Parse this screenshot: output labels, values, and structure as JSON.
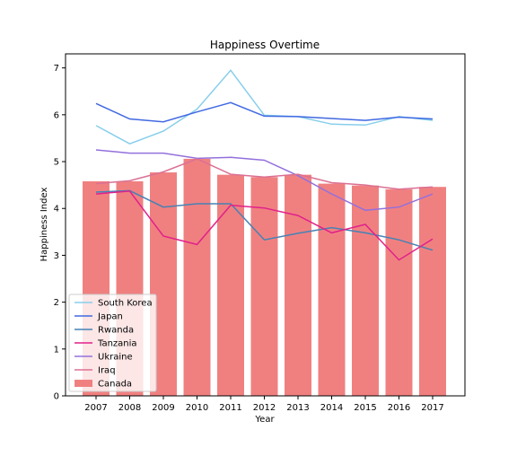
{
  "chart_data": {
    "type": "bar",
    "title": "Happiness Overtime",
    "xlabel": "Year",
    "ylabel": "Happiness Index",
    "categories": [
      "2007",
      "2008",
      "2009",
      "2010",
      "2011",
      "2012",
      "2013",
      "2014",
      "2015",
      "2016",
      "2017"
    ],
    "ylim": [
      0,
      7.3
    ],
    "yticks": [
      0,
      1,
      2,
      3,
      4,
      5,
      6,
      7
    ],
    "grid": false,
    "legend_position": "lower-left",
    "bar_series": {
      "name": "Canada",
      "color": "#f08080",
      "values": [
        4.58,
        4.58,
        4.77,
        5.06,
        4.72,
        4.67,
        4.72,
        4.53,
        4.49,
        4.41,
        4.46
      ]
    },
    "line_series": [
      {
        "name": "South Korea",
        "color": "#87ceeb",
        "values": [
          5.77,
          5.38,
          5.65,
          6.12,
          6.95,
          5.99,
          5.96,
          5.8,
          5.78,
          5.96,
          5.88
        ]
      },
      {
        "name": "Japan",
        "color": "#4169e1",
        "values": [
          6.24,
          5.91,
          5.85,
          6.06,
          6.26,
          5.97,
          5.96,
          5.92,
          5.88,
          5.95,
          5.91
        ]
      },
      {
        "name": "Rwanda",
        "color": "#4682b4",
        "values": [
          4.35,
          4.38,
          4.03,
          4.1,
          4.1,
          3.33,
          3.47,
          3.59,
          3.48,
          3.33,
          3.11
        ]
      },
      {
        "name": "Tanzania",
        "color": "#e0218a",
        "values": [
          4.31,
          4.37,
          3.41,
          3.23,
          4.07,
          4.01,
          3.85,
          3.48,
          3.66,
          2.9,
          3.35
        ]
      },
      {
        "name": "Ukraine",
        "color": "#9370db",
        "values": [
          5.25,
          5.18,
          5.18,
          5.07,
          5.09,
          5.03,
          4.7,
          4.31,
          3.96,
          4.03,
          4.31
        ]
      },
      {
        "name": "Iraq",
        "color": "#db7093",
        "values": [
          4.53,
          4.59,
          4.78,
          5.06,
          4.73,
          4.67,
          4.73,
          4.55,
          4.5,
          4.41,
          4.46
        ]
      }
    ]
  }
}
